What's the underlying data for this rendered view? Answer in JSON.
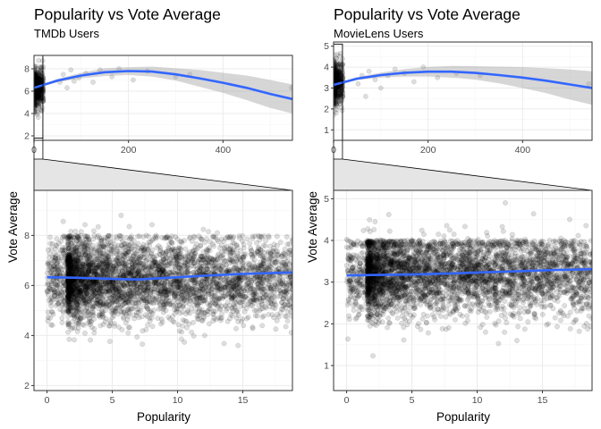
{
  "chart_data": [
    {
      "type": "scatter",
      "title": "Popularity vs Vote Average",
      "subtitle": "TMDb Users",
      "overview": {
        "xlim": [
          0,
          547
        ],
        "ylim": [
          1.6,
          9.2
        ],
        "x_ticks": [
          0,
          200,
          400
        ],
        "y_ticks": [
          2,
          4,
          6,
          8
        ],
        "zoom_window": {
          "x": [
            0,
            18.8
          ],
          "y": [
            1.8,
            9.8
          ]
        },
        "smooth": {
          "x": [
            0,
            50,
            100,
            150,
            200,
            250,
            300,
            350,
            400,
            450,
            500,
            547
          ],
          "y": [
            6.3,
            6.95,
            7.4,
            7.7,
            7.8,
            7.75,
            7.5,
            7.15,
            6.75,
            6.3,
            5.75,
            5.3
          ],
          "lower": [
            6.25,
            6.8,
            7.15,
            7.35,
            7.45,
            7.3,
            6.95,
            6.4,
            5.85,
            5.2,
            4.5,
            4.0
          ],
          "upper": [
            6.35,
            7.1,
            7.65,
            8.05,
            8.15,
            8.2,
            8.05,
            7.9,
            7.65,
            7.4,
            7.0,
            6.6
          ]
        },
        "outliers": [
          [
            55,
            6.8
          ],
          [
            62,
            7.5
          ],
          [
            70,
            6.3
          ],
          [
            78,
            7.9
          ],
          [
            85,
            6.9
          ],
          [
            95,
            7.2
          ],
          [
            110,
            7.6
          ],
          [
            125,
            6.8
          ],
          [
            140,
            7.9
          ],
          [
            165,
            7.3
          ],
          [
            180,
            8.0
          ],
          [
            210,
            7.0
          ],
          [
            240,
            7.8
          ],
          [
            300,
            7.3
          ],
          [
            330,
            7.5
          ],
          [
            545,
            6.3
          ]
        ]
      },
      "zoom": {
        "xlim": [
          -1,
          18.8
        ],
        "ylim": [
          1.8,
          9.8
        ],
        "x_ticks": [
          0,
          5,
          10,
          15
        ],
        "y_ticks": [
          2,
          4,
          6,
          8
        ],
        "xlabel": "Popularity",
        "ylabel": "Vote Average",
        "smooth": {
          "x": [
            0,
            2,
            4,
            6,
            7,
            8,
            10,
            12,
            14,
            16,
            18.8
          ],
          "y": [
            6.33,
            6.31,
            6.28,
            6.25,
            6.24,
            6.27,
            6.33,
            6.39,
            6.44,
            6.48,
            6.52
          ]
        },
        "point_cloud": {
          "center_y": 6.25,
          "spread": 0.85,
          "low_clip": 2.0,
          "high_clip": 9.6,
          "cap_dense": 8.0
        }
      }
    },
    {
      "type": "scatter",
      "title": "Popularity vs Vote Average",
      "subtitle": "MovieLens Users",
      "overview": {
        "xlim": [
          0,
          547
        ],
        "ylim": [
          0.5,
          5.2
        ],
        "x_ticks": [
          0,
          200,
          400
        ],
        "y_ticks": [
          1,
          2,
          3,
          4,
          5
        ],
        "zoom_window": {
          "x": [
            0,
            18.8
          ],
          "y": [
            0.5,
            5.1
          ]
        },
        "smooth": {
          "x": [
            0,
            50,
            100,
            150,
            200,
            250,
            300,
            350,
            400,
            450,
            500,
            547
          ],
          "y": [
            3.15,
            3.45,
            3.62,
            3.73,
            3.78,
            3.78,
            3.72,
            3.62,
            3.5,
            3.35,
            3.17,
            3.0
          ],
          "lower": [
            3.12,
            3.38,
            3.5,
            3.55,
            3.55,
            3.5,
            3.4,
            3.22,
            3.0,
            2.75,
            2.45,
            2.2
          ],
          "upper": [
            3.18,
            3.52,
            3.74,
            3.91,
            4.01,
            4.06,
            4.04,
            4.02,
            4.0,
            3.95,
            3.89,
            3.8
          ]
        },
        "outliers": [
          [
            52,
            3.2
          ],
          [
            60,
            3.6
          ],
          [
            68,
            2.6
          ],
          [
            75,
            3.8
          ],
          [
            88,
            3.4
          ],
          [
            100,
            3.0
          ],
          [
            115,
            3.6
          ],
          [
            130,
            3.9
          ],
          [
            150,
            3.7
          ],
          [
            170,
            3.3
          ],
          [
            190,
            4.0
          ],
          [
            220,
            3.5
          ],
          [
            260,
            3.7
          ],
          [
            310,
            3.6
          ],
          [
            540,
            3.2
          ]
        ]
      },
      "zoom": {
        "xlim": [
          -1,
          18.8
        ],
        "ylim": [
          0.4,
          5.2
        ],
        "x_ticks": [
          0,
          5,
          10,
          15
        ],
        "y_ticks": [
          1,
          2,
          3,
          4,
          5
        ],
        "xlabel": "Popularity",
        "ylabel": "Vote Average",
        "smooth": {
          "x": [
            0,
            2,
            4,
            6,
            7,
            8,
            10,
            12,
            14,
            16,
            18.8
          ],
          "y": [
            3.16,
            3.17,
            3.18,
            3.19,
            3.2,
            3.21,
            3.23,
            3.25,
            3.27,
            3.29,
            3.31
          ]
        },
        "point_cloud": {
          "center_y": 3.2,
          "spread": 0.5,
          "low_clip": 0.5,
          "high_clip": 5.0,
          "cap_dense": 4.0
        }
      }
    }
  ]
}
